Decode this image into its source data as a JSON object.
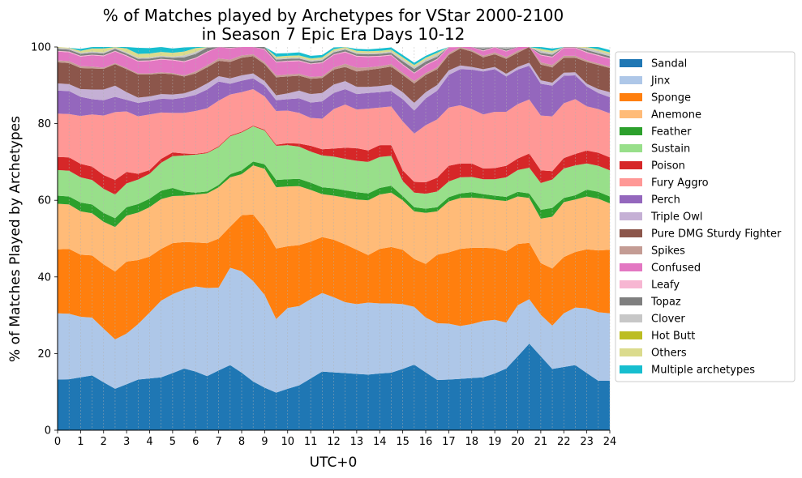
{
  "chart_data": {
    "type": "area",
    "stacked": true,
    "title": "% of Matches played by Archetypes for VStar 2000-2100",
    "subtitle": "in Season 7 Epic Era Days 10-12",
    "xlabel": "UTC+0",
    "ylabel": "% of Matches Played by Archetypes",
    "xlim": [
      0,
      24
    ],
    "ylim": [
      0,
      100
    ],
    "x_ticks": [
      0,
      1,
      2,
      3,
      4,
      5,
      6,
      7,
      8,
      9,
      10,
      11,
      12,
      13,
      14,
      15,
      16,
      17,
      18,
      19,
      20,
      21,
      22,
      23,
      24
    ],
    "y_ticks": [
      0,
      20,
      40,
      60,
      80,
      100
    ],
    "grid": "vertical dashed",
    "legend_position": "outside-right",
    "x": [
      0,
      0.5,
      1,
      1.5,
      2,
      2.5,
      3,
      3.5,
      4,
      4.5,
      5,
      5.5,
      6,
      6.5,
      7,
      7.5,
      8,
      8.5,
      9,
      9.5,
      10,
      10.5,
      11,
      11.5,
      12,
      12.5,
      13,
      13.5,
      14,
      14.5,
      15,
      15.5,
      16,
      16.5,
      17,
      17.5,
      18,
      18.5,
      19,
      19.5,
      20,
      20.5,
      21,
      21.5,
      22,
      22.5,
      23,
      23.5,
      24
    ],
    "series": [
      {
        "name": "Sandal",
        "color": "#1f77b4",
        "values": [
          13.2,
          13.3,
          13.8,
          14.3,
          12.5,
          10.8,
          12.0,
          13.2,
          13.5,
          13.8,
          14.9,
          16.1,
          15.3,
          14.1,
          15.6,
          17.0,
          15.0,
          12.7,
          11.1,
          9.8,
          10.8,
          11.7,
          13.5,
          15.3,
          15.1,
          14.9,
          14.7,
          14.5,
          14.8,
          15.0,
          16.0,
          17.1,
          15.1,
          13.1,
          13.2,
          13.4,
          13.6,
          13.8,
          14.8,
          16.1,
          19.3,
          22.6,
          19.3,
          16.0,
          16.5,
          17.0,
          14.9,
          12.9,
          12.9
        ]
      },
      {
        "name": "Jinx",
        "color": "#aec7e8",
        "values": [
          17.3,
          17.1,
          15.8,
          15.1,
          14.0,
          12.9,
          13.2,
          14.5,
          17.2,
          20.0,
          20.6,
          20.6,
          22.2,
          23.0,
          21.6,
          25.4,
          26.5,
          26.2,
          24.2,
          19.2,
          21.1,
          20.7,
          20.7,
          20.5,
          19.6,
          18.5,
          18.2,
          18.8,
          18.3,
          18.1,
          16.9,
          15.1,
          14.3,
          14.8,
          14.6,
          13.8,
          14.1,
          14.7,
          14.0,
          12.0,
          13.3,
          11.6,
          10.8,
          11.3,
          14.0,
          15.0,
          16.9,
          17.9,
          17.6
        ]
      },
      {
        "name": "Sponge",
        "color": "#ff7f0e",
        "values": [
          16.7,
          16.9,
          16.2,
          16.2,
          16.8,
          17.7,
          18.8,
          16.7,
          14.6,
          13.5,
          13.3,
          12.4,
          11.5,
          11.7,
          12.8,
          10.7,
          14.6,
          17.4,
          17.3,
          18.4,
          16.1,
          15.9,
          15.0,
          14.6,
          15.0,
          15.1,
          14.2,
          12.4,
          14.2,
          14.7,
          14.2,
          12.5,
          14.0,
          17.9,
          18.6,
          20.1,
          19.9,
          19.1,
          18.7,
          18.6,
          16.0,
          14.7,
          13.5,
          14.9,
          14.7,
          14.5,
          15.4,
          16.1,
          16.6
        ]
      },
      {
        "name": "Anemone",
        "color": "#ffbb78",
        "values": [
          11.9,
          11.6,
          11.3,
          11.0,
          11.1,
          11.6,
          12.0,
          12.4,
          12.9,
          13.0,
          12.3,
          12.1,
          12.5,
          13.0,
          13.4,
          12.9,
          10.7,
          12.8,
          15.6,
          16.0,
          15.6,
          15.4,
          13.5,
          11.2,
          11.5,
          12.2,
          13.1,
          14.3,
          14.2,
          14.2,
          12.9,
          12.4,
          13.3,
          11.3,
          13.3,
          13.3,
          13.1,
          12.9,
          12.6,
          13.1,
          12.4,
          11.7,
          11.6,
          13.5,
          14.3,
          13.7,
          13.8,
          13.5,
          12.1
        ]
      },
      {
        "name": "Feather",
        "color": "#2ca02c",
        "values": [
          2.1,
          2.1,
          2.3,
          2.3,
          2.3,
          2.3,
          2.2,
          2.2,
          2.2,
          2.2,
          2.1,
          1.1,
          0.5,
          0.5,
          0.6,
          0.8,
          1.0,
          1.0,
          1.2,
          1.9,
          1.9,
          1.9,
          1.9,
          1.8,
          1.9,
          1.9,
          1.9,
          1.8,
          1.7,
          1.8,
          1.1,
          1.1,
          1.1,
          1.1,
          1.1,
          1.2,
          1.4,
          1.1,
          1.1,
          1.1,
          1.2,
          1.2,
          2.3,
          2.3,
          1.1,
          1.1,
          1.8,
          1.8,
          1.8
        ]
      },
      {
        "name": "Sustain",
        "color": "#98df8a",
        "values": [
          6.7,
          6.7,
          6.6,
          6.4,
          6.3,
          6.2,
          6.2,
          6.4,
          6.5,
          7.3,
          8.3,
          9.4,
          9.9,
          10.0,
          9.9,
          9.9,
          9.9,
          9.2,
          8.8,
          8.9,
          8.9,
          8.4,
          8.1,
          8.3,
          8.3,
          8.2,
          8.2,
          8.2,
          8.1,
          7.8,
          3.9,
          3.8,
          3.9,
          4.1,
          4.1,
          4.2,
          4.0,
          3.9,
          4.3,
          5.1,
          5.7,
          6.7,
          7.0,
          7.4,
          7.7,
          7.8,
          6.8,
          6.8,
          6.8
        ]
      },
      {
        "name": "Poison",
        "color": "#d62728",
        "values": [
          3.4,
          3.5,
          3.5,
          3.5,
          3.6,
          3.8,
          3.0,
          1.5,
          1.0,
          1.0,
          1.0,
          0.5,
          0.2,
          0.2,
          0.2,
          0.2,
          0.2,
          0.2,
          0.2,
          0.3,
          0.5,
          0.8,
          1.5,
          1.6,
          2.1,
          2.9,
          3.3,
          3.0,
          3.1,
          2.8,
          2.8,
          2.8,
          3.0,
          3.6,
          4.1,
          3.6,
          3.5,
          2.8,
          2.9,
          3.0,
          3.0,
          3.7,
          3.3,
          2.2,
          2.7,
          3.0,
          3.4,
          3.4,
          3.4
        ]
      },
      {
        "name": "Fury Aggro",
        "color": "#ff9896",
        "values": [
          11.3,
          11.3,
          12.5,
          13.6,
          15.5,
          17.7,
          15.8,
          15.0,
          14.5,
          12.1,
          10.3,
          10.6,
          11.2,
          11.5,
          11.9,
          10.7,
          10.3,
          9.5,
          8.7,
          8.8,
          8.5,
          8.0,
          7.3,
          8.0,
          10.3,
          11.3,
          10.1,
          10.9,
          9.8,
          10.1,
          12.8,
          12.6,
          14.9,
          15.2,
          15.2,
          15.2,
          14.2,
          14.1,
          14.7,
          14.1,
          14.2,
          14.1,
          14.3,
          14.3,
          14.3,
          14.3,
          11.5,
          11.4,
          11.5
        ]
      },
      {
        "name": "Perch",
        "color": "#9467bd",
        "values": [
          6.0,
          6.0,
          5.0,
          4.0,
          4.0,
          4.0,
          3.0,
          3.5,
          3.5,
          3.6,
          3.6,
          4.0,
          4.2,
          4.9,
          5.0,
          2.8,
          3.0,
          2.8,
          2.8,
          2.8,
          3.0,
          3.8,
          4.0,
          4.5,
          4.2,
          4.0,
          4.0,
          4.1,
          4.0,
          4.0,
          5.8,
          6.0,
          7.0,
          7.5,
          8.5,
          9.4,
          10.3,
          11.2,
          11.1,
          9.2,
          9.0,
          8.8,
          8.3,
          8.0,
          7.2,
          6.2,
          5.2,
          4.2,
          4.2
        ]
      },
      {
        "name": "Triple Owl",
        "color": "#c5b0d5",
        "values": [
          1.9,
          1.8,
          2.0,
          2.5,
          2.8,
          2.9,
          2.0,
          1.4,
          1.2,
          1.2,
          1.2,
          1.1,
          1.4,
          1.6,
          1.4,
          1.4,
          1.4,
          1.3,
          1.2,
          1.3,
          1.5,
          2.0,
          2.2,
          2.2,
          2.2,
          2.1,
          1.9,
          1.6,
          1.6,
          1.7,
          1.8,
          2.0,
          1.6,
          1.5,
          1.2,
          1.0,
          0.7,
          0.6,
          0.6,
          0.7,
          0.7,
          0.8,
          0.9,
          0.8,
          0.8,
          0.8,
          0.7,
          1.0,
          1.3
        ]
      },
      {
        "name": "Pure DMG Sturdy Fighter",
        "color": "#8c564b",
        "values": [
          5.5,
          5.5,
          5.5,
          5.5,
          5.4,
          5.6,
          6.0,
          6.0,
          5.7,
          5.4,
          5.3,
          4.4,
          4.2,
          4.2,
          4.0,
          4.3,
          4.6,
          4.5,
          4.4,
          4.7,
          4.4,
          3.9,
          4.0,
          3.9,
          3.9,
          3.7,
          4.0,
          4.4,
          4.6,
          4.7,
          4.5,
          5.1,
          4.5,
          4.1,
          4.0,
          4.4,
          4.0,
          3.1,
          3.3,
          3.9,
          3.7,
          4.1,
          4.1,
          4.0,
          3.9,
          3.8,
          5.7,
          6.3,
          6.3
        ]
      },
      {
        "name": "Spikes",
        "color": "#c49c94",
        "values": [
          0.5,
          0.5,
          0.5,
          0.5,
          0.3,
          0.3,
          0.3,
          0.3,
          0.3,
          0.3,
          0.3,
          0.3,
          0.5,
          0.5,
          0.6,
          0.6,
          0.6,
          0.5,
          0.5,
          0.5,
          0.5,
          0.5,
          0.5,
          0.5,
          0.5,
          0.8,
          1.0,
          0.7,
          0.6,
          0.6,
          0.6,
          0.6,
          0.5,
          0.5,
          0.5,
          0.4,
          0.4,
          0.4,
          0.5,
          0.5,
          0.5,
          0.5,
          0.6,
          0.6,
          0.5,
          0.5,
          0.4,
          0.4,
          0.4
        ]
      },
      {
        "name": "Confused",
        "color": "#e377c2",
        "values": [
          2.3,
          2.3,
          2.5,
          2.9,
          3.0,
          3.0,
          3.1,
          3.1,
          3.2,
          3.3,
          3.3,
          3.5,
          3.4,
          3.4,
          3.3,
          2.9,
          2.8,
          3.1,
          3.3,
          3.4,
          3.4,
          3.3,
          3.3,
          3.4,
          3.3,
          3.0,
          2.9,
          2.7,
          2.5,
          2.3,
          2.0,
          2.0,
          2.0,
          2.0,
          1.5,
          1.3,
          1.1,
          1.2,
          1.3,
          1.4,
          1.5,
          1.7,
          1.8,
          2.0,
          2.0,
          2.0,
          2.0,
          2.0,
          2.0
        ]
      },
      {
        "name": "Leafy",
        "color": "#f7b6d2",
        "values": [
          0.2,
          0.2,
          0.2,
          0.2,
          0.2,
          0.2,
          0.2,
          0.2,
          0.2,
          0.2,
          0.2,
          0.2,
          0.2,
          0.2,
          0.2,
          0.2,
          0.2,
          0.2,
          0.2,
          0.2,
          0.2,
          0.2,
          0.2,
          0.2,
          0.2,
          0.2,
          0.2,
          0.2,
          0.2,
          0.2,
          0.2,
          0.2,
          0.2,
          0.2,
          0.2,
          0.2,
          0.2,
          0.2,
          0.2,
          0.2,
          0.2,
          0.2,
          0.2,
          0.2,
          0.2,
          0.2,
          0.2,
          0.2,
          0.2
        ]
      },
      {
        "name": "Topaz",
        "color": "#7f7f7f",
        "values": [
          0.5,
          0.5,
          0.5,
          0.5,
          0.5,
          0.5,
          0.5,
          0.5,
          0.5,
          0.5,
          0.5,
          1.0,
          1.0,
          1.0,
          1.0,
          0.5,
          0.5,
          0.5,
          0.5,
          0.5,
          0.5,
          0.5,
          0.5,
          0.5,
          0.5,
          0.5,
          0.5,
          0.5,
          0.5,
          0.5,
          0.8,
          1.0,
          0.8,
          0.6,
          0.6,
          0.5,
          0.5,
          0.5,
          0.5,
          0.5,
          0.5,
          0.5,
          0.5,
          0.5,
          0.5,
          0.5,
          0.5,
          0.5,
          0.5
        ]
      },
      {
        "name": "Clover",
        "color": "#c7c7c7",
        "values": [
          0.3,
          0.3,
          0.3,
          0.3,
          0.3,
          0.3,
          0.3,
          0.3,
          0.3,
          0.3,
          0.3,
          0.5,
          0.5,
          0.5,
          0.5,
          0.3,
          0.3,
          0.3,
          0.3,
          0.3,
          0.3,
          0.3,
          0.3,
          0.3,
          0.3,
          0.3,
          0.3,
          0.3,
          0.3,
          0.3,
          0.5,
          0.5,
          0.5,
          0.5,
          0.5,
          0.5,
          0.5,
          0.5,
          0.5,
          0.5,
          0.5,
          0.5,
          0.5,
          0.5,
          0.5,
          0.5,
          0.5,
          0.5,
          0.5
        ]
      },
      {
        "name": "Hot Butt",
        "color": "#bcbd22",
        "values": [
          0,
          0,
          0,
          0,
          0,
          0,
          0,
          0,
          0,
          0,
          0,
          0,
          0,
          0,
          0,
          0,
          0,
          0,
          0,
          0,
          0,
          0,
          0,
          0,
          0,
          0,
          0,
          0,
          0,
          0,
          0,
          0,
          0,
          0,
          0,
          0,
          0,
          0,
          0,
          0,
          0,
          0,
          0,
          0,
          0,
          0,
          0,
          0,
          0
        ]
      },
      {
        "name": "Others",
        "color": "#dbdb8d",
        "values": [
          0.2,
          0.2,
          0.5,
          0.8,
          1.0,
          1.0,
          1.0,
          1.0,
          1.0,
          1.0,
          1.0,
          1.0,
          1.0,
          0.9,
          0.9,
          0.7,
          0.5,
          0.5,
          0.5,
          0.5,
          0.5,
          0.5,
          0.5,
          0.5,
          0.5,
          0.5,
          0.5,
          0.5,
          0.5,
          0.5,
          0.5,
          0.5,
          0.5,
          0.5,
          0.5,
          0.5,
          0.5,
          0.5,
          0.5,
          0.5,
          0.5,
          0.5,
          0.5,
          0.5,
          0.5,
          0.5,
          0.5,
          0.5,
          0.5
        ]
      },
      {
        "name": "Multiple archetypes",
        "color": "#17becf",
        "values": [
          0,
          0,
          0.5,
          0.5,
          2.1,
          2.5,
          2.0,
          1.6,
          1.4,
          1.5,
          1.1,
          1.1,
          1.2,
          1.3,
          0.5,
          0.5,
          0.8,
          0.6,
          0.8,
          0.8,
          0.7,
          0.8,
          0.7,
          0.6,
          0.5,
          0.5,
          0.5,
          0.5,
          0.6,
          0.6,
          0.6,
          0.6,
          0.5,
          0.5,
          0.5,
          0.6,
          0.6,
          0.6,
          0.6,
          0.6,
          0.6,
          0.6,
          0.6,
          0.6,
          0.6,
          0.6,
          0.6,
          0.6,
          0.6
        ]
      }
    ]
  }
}
